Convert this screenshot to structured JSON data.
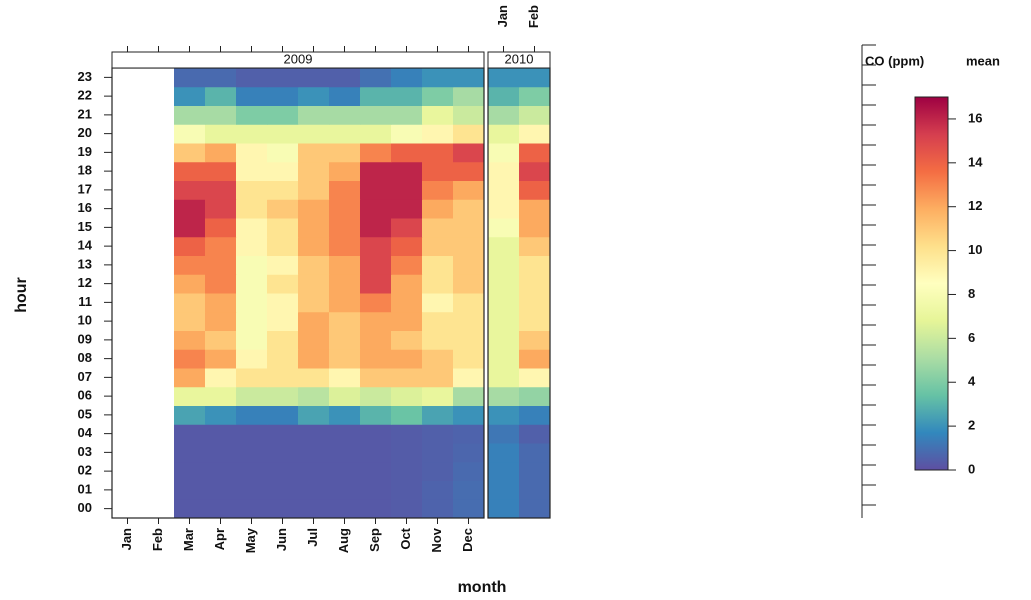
{
  "chart_data": {
    "type": "heatmap",
    "x_label": "month",
    "y_label": "hour",
    "hours": [
      "00",
      "01",
      "02",
      "03",
      "04",
      "05",
      "06",
      "07",
      "08",
      "09",
      "10",
      "11",
      "12",
      "13",
      "14",
      "15",
      "16",
      "17",
      "18",
      "19",
      "20",
      "21",
      "22",
      "23"
    ],
    "panels": [
      {
        "label": "2009",
        "categories": [
          "Jan",
          "Feb",
          "Mar",
          "Apr",
          "May",
          "Jun",
          "Jul",
          "Aug",
          "Sep",
          "Oct",
          "Nov",
          "Dec"
        ],
        "values": [
          [
            null,
            null,
            0.3,
            0.3,
            0.3,
            0.3,
            0.3,
            0.3,
            0.3,
            0.4,
            0.6,
            0.9
          ],
          [
            null,
            null,
            0.3,
            0.3,
            0.3,
            0.3,
            0.3,
            0.3,
            0.3,
            0.4,
            0.6,
            0.9
          ],
          [
            null,
            null,
            0.3,
            0.3,
            0.3,
            0.3,
            0.3,
            0.3,
            0.3,
            0.4,
            0.5,
            0.8
          ],
          [
            null,
            null,
            0.3,
            0.3,
            0.3,
            0.3,
            0.3,
            0.3,
            0.3,
            0.4,
            0.5,
            0.7
          ],
          [
            null,
            null,
            0.3,
            0.3,
            0.3,
            0.3,
            0.3,
            0.3,
            0.3,
            0.4,
            0.5,
            0.6
          ],
          [
            null,
            null,
            2.5,
            2,
            1.5,
            1.5,
            2.5,
            2,
            3,
            3.5,
            2.5,
            2
          ],
          [
            null,
            null,
            7,
            7,
            6,
            6,
            5.5,
            6.5,
            6,
            6.5,
            7,
            5
          ],
          [
            null,
            null,
            12,
            9,
            10,
            10,
            10,
            9,
            11,
            11,
            11,
            9
          ],
          [
            null,
            null,
            13,
            12,
            9,
            10,
            12,
            11,
            12,
            12,
            11,
            10
          ],
          [
            null,
            null,
            12,
            11,
            8,
            10,
            12,
            11,
            12,
            11,
            10,
            10
          ],
          [
            null,
            null,
            11,
            12,
            8,
            9,
            12,
            11,
            12,
            12,
            10,
            10
          ],
          [
            null,
            null,
            11,
            12,
            8,
            9,
            11,
            12,
            13,
            12,
            9,
            10
          ],
          [
            null,
            null,
            12,
            13,
            8,
            10,
            11,
            12,
            15,
            12,
            10,
            11
          ],
          [
            null,
            null,
            13,
            13,
            8,
            9,
            11,
            12,
            15,
            13,
            10,
            11
          ],
          [
            null,
            null,
            14,
            13,
            9,
            10,
            12,
            13,
            15,
            14,
            11,
            11
          ],
          [
            null,
            null,
            16,
            14,
            9,
            10,
            12,
            13,
            16,
            15,
            11,
            11
          ],
          [
            null,
            null,
            16,
            15,
            10,
            11,
            12,
            13,
            16,
            16,
            12,
            11
          ],
          [
            null,
            null,
            15,
            15,
            10,
            10,
            11,
            13,
            16,
            16,
            13,
            12
          ],
          [
            null,
            null,
            14,
            14,
            9,
            9,
            11,
            12,
            16,
            16,
            14,
            14
          ],
          [
            null,
            null,
            11,
            12,
            9,
            8,
            11,
            11,
            13,
            14,
            14,
            15
          ],
          [
            null,
            null,
            8,
            7,
            7,
            7,
            7,
            7,
            7,
            8,
            9,
            10
          ],
          [
            null,
            null,
            5,
            5,
            4,
            4,
            5,
            5,
            5,
            5,
            7,
            6
          ],
          [
            null,
            null,
            2,
            3,
            1.5,
            1.5,
            2,
            1.5,
            3,
            3,
            4,
            5
          ],
          [
            null,
            null,
            0.8,
            0.8,
            0.5,
            0.5,
            0.5,
            0.5,
            1,
            1.5,
            2,
            2
          ]
        ]
      },
      {
        "label": "2010",
        "categories": [
          "Jan",
          "Feb"
        ],
        "values": [
          [
            1.5,
            0.8
          ],
          [
            1.5,
            0.8
          ],
          [
            1.5,
            0.8
          ],
          [
            1.5,
            0.8
          ],
          [
            1.2,
            0.5
          ],
          [
            2,
            1.5
          ],
          [
            5,
            4.5
          ],
          [
            7,
            9
          ],
          [
            7,
            12
          ],
          [
            7,
            11
          ],
          [
            7,
            10
          ],
          [
            7,
            10
          ],
          [
            7,
            10
          ],
          [
            7,
            10
          ],
          [
            7,
            11
          ],
          [
            8,
            12
          ],
          [
            9,
            12
          ],
          [
            9,
            14
          ],
          [
            9,
            15
          ],
          [
            8,
            14
          ],
          [
            7,
            9
          ],
          [
            5,
            6
          ],
          [
            3,
            4
          ],
          [
            2,
            2
          ]
        ]
      }
    ],
    "colorbar_title": "CO (ppm)",
    "colorbar_subtitle": "mean",
    "colors": [
      "#5e4fa2",
      "#3288bd",
      "#66c2a5",
      "#abdda4",
      "#e6f598",
      "#ffffbf",
      "#fee08b",
      "#fdae61",
      "#f46d43",
      "#d53e4f",
      "#9e0142"
    ],
    "zlim": [
      0,
      17
    ],
    "zticks": [
      0,
      2,
      4,
      6,
      8,
      10,
      12,
      14,
      16
    ]
  }
}
